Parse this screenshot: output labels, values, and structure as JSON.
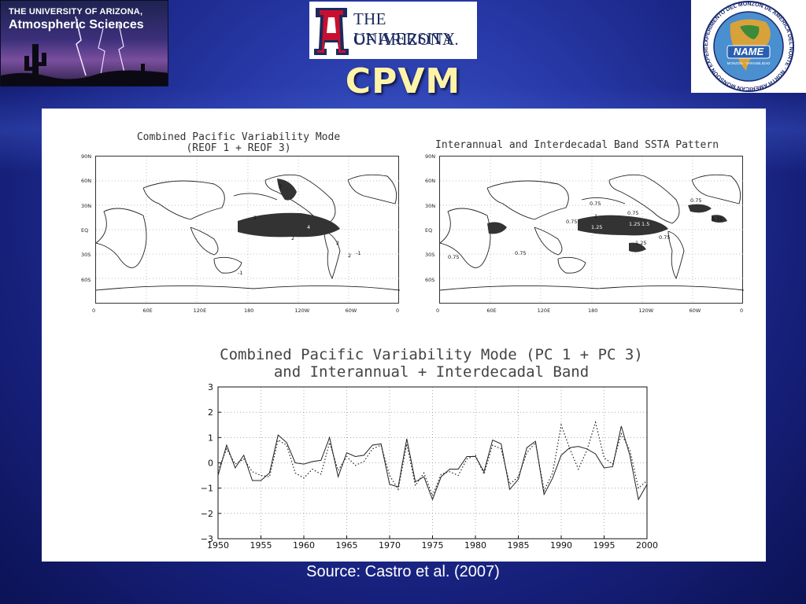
{
  "header": {
    "title": "CPVM",
    "left_logo": {
      "line1": "THE UNIVERSITY OF ARIZONA,",
      "line2": "Atmospheric Sciences"
    },
    "center_logo": {
      "letter": "A",
      "line1": "THE UNIVERSITY",
      "line2": "OF ARIZONA."
    },
    "right_logo": {
      "ring_text": "EXPERIMENTO DEL MONZÓN DE AMÉRICA DEL NORTE · NORTH AMERICAN MONSOON EXPERIMENT",
      "badge": "NAME",
      "sub": "MONZÓN · VARIABILIDAD"
    }
  },
  "maps": [
    {
      "title_line1": "Combined Pacific Variability Mode",
      "title_line2": "(REOF 1 + REOF 3)",
      "lat_ticks": [
        "90N",
        "60N",
        "30N",
        "EQ",
        "30S",
        "60S"
      ],
      "lon_ticks": [
        "0",
        "60E",
        "120E",
        "180",
        "120W",
        "60W",
        "0"
      ],
      "contour_labels": [
        "2",
        "4",
        "2",
        "2",
        "2",
        "2",
        "-1",
        "-1"
      ]
    },
    {
      "title_line1": "Interannual and Interdecadal Band SSTA Pattern",
      "title_line2": "",
      "lat_ticks": [
        "90N",
        "60N",
        "30N",
        "EQ",
        "30S",
        "60S"
      ],
      "lon_ticks": [
        "0",
        "60E",
        "120E",
        "180",
        "120W",
        "60W",
        "0"
      ],
      "contour_labels": [
        "0.75",
        "1",
        "0.75",
        "1.25",
        "1.25",
        "1.5",
        "0.75",
        "1.25",
        "0.75",
        "0.75",
        "0.75",
        "0.75",
        "0.75"
      ]
    }
  ],
  "chart_data": {
    "type": "line",
    "title": "Combined Pacific Variability Mode (PC 1 + PC 3)\nand Interannual + Interdecadal Band",
    "title_line1": "Combined Pacific Variability Mode (PC 1 + PC 3)",
    "title_line2": "and Interannual + Interdecadal Band",
    "xlabel": "",
    "ylabel": "",
    "xlim": [
      1950,
      2000
    ],
    "ylim": [
      -3,
      3
    ],
    "x_ticks": [
      1950,
      1955,
      1960,
      1965,
      1970,
      1975,
      1980,
      1985,
      1990,
      1995,
      2000
    ],
    "y_ticks": [
      -3,
      -2,
      -1,
      0,
      1,
      2,
      3
    ],
    "grid": true,
    "x": [
      1950,
      1951,
      1952,
      1953,
      1954,
      1955,
      1956,
      1957,
      1958,
      1959,
      1960,
      1961,
      1962,
      1963,
      1964,
      1965,
      1966,
      1967,
      1968,
      1969,
      1970,
      1971,
      1972,
      1973,
      1974,
      1975,
      1976,
      1977,
      1978,
      1979,
      1980,
      1981,
      1982,
      1983,
      1984,
      1985,
      1986,
      1987,
      1988,
      1989,
      1990,
      1991,
      1992,
      1993,
      1994,
      1995,
      1996,
      1997,
      1998,
      1999,
      2000
    ],
    "series": [
      {
        "style": "solid",
        "values": [
          -0.5,
          0.7,
          -0.2,
          0.3,
          -0.7,
          -0.7,
          -0.4,
          1.1,
          0.8,
          0.0,
          -0.05,
          0.05,
          0.1,
          1.0,
          -0.55,
          0.4,
          0.25,
          0.3,
          0.7,
          0.75,
          -0.85,
          -0.95,
          0.95,
          -0.75,
          -0.55,
          -1.45,
          -0.55,
          -0.25,
          -0.25,
          0.25,
          0.25,
          -0.35,
          0.9,
          0.75,
          -1.05,
          -0.65,
          0.6,
          0.85,
          -1.25,
          -0.6,
          0.3,
          0.6,
          0.65,
          0.55,
          0.35,
          -0.2,
          -0.15,
          1.45,
          0.3,
          -1.45,
          -0.85
        ]
      },
      {
        "style": "dotted",
        "values": [
          -0.3,
          0.55,
          -0.05,
          0.15,
          -0.35,
          -0.5,
          -0.55,
          0.9,
          0.7,
          -0.4,
          -0.6,
          -0.25,
          -0.45,
          0.8,
          -0.3,
          0.25,
          -0.1,
          0.05,
          0.55,
          0.7,
          -0.5,
          -1.05,
          0.75,
          -0.9,
          -0.4,
          -1.3,
          -0.45,
          -0.35,
          -0.5,
          0.15,
          0.3,
          -0.45,
          0.7,
          0.55,
          -0.85,
          -0.55,
          0.4,
          0.8,
          -1.1,
          -0.4,
          1.5,
          0.55,
          -0.25,
          0.5,
          1.6,
          0.2,
          -0.05,
          1.15,
          0.5,
          -1.0,
          -0.7
        ]
      }
    ]
  },
  "footer": {
    "source": "Source:  Castro et al. (2007)"
  }
}
